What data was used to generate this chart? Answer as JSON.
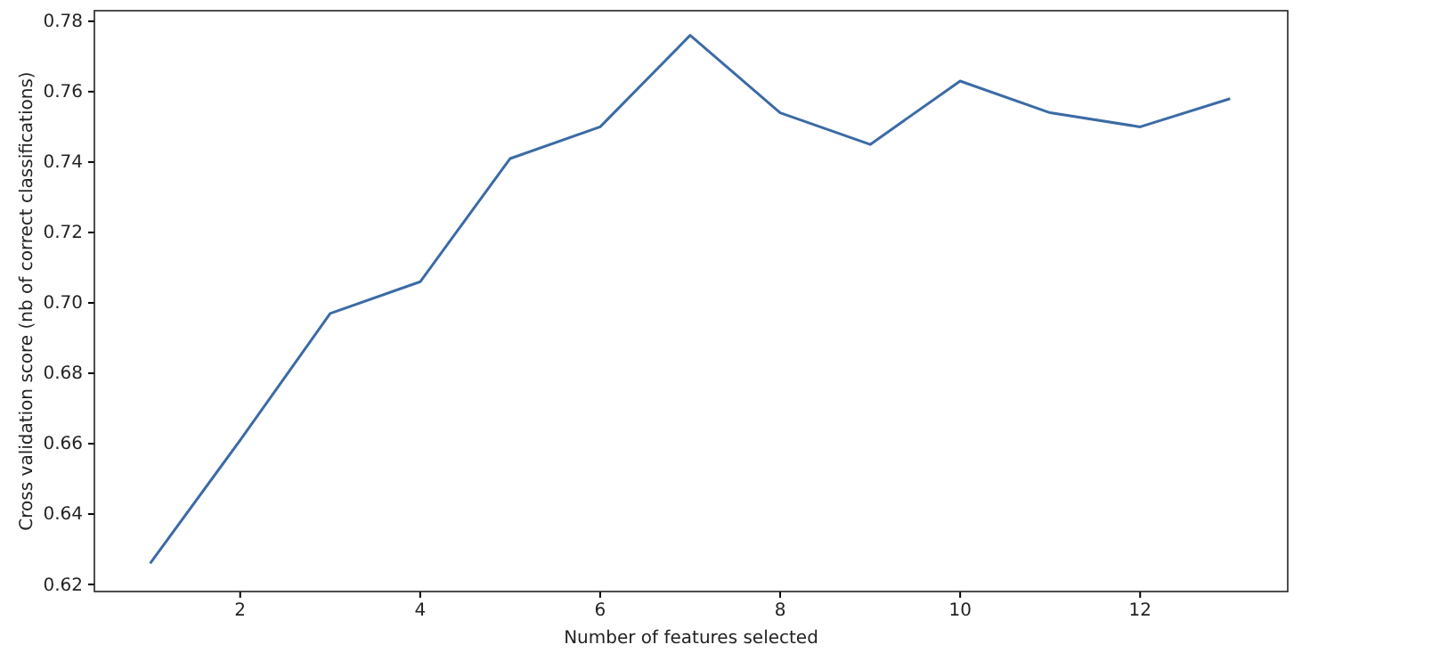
{
  "chart_data": {
    "type": "line",
    "xlabel": "Number of features selected",
    "ylabel": "Cross validation score (nb of correct classifications)",
    "x": [
      1,
      2,
      3,
      4,
      5,
      6,
      7,
      8,
      9,
      10,
      11,
      12,
      13
    ],
    "series": [
      {
        "color": "#3b6ba5",
        "values": [
          0.626,
          0.661,
          0.697,
          0.706,
          0.741,
          0.75,
          0.776,
          0.754,
          0.745,
          0.763,
          0.754,
          0.75,
          0.758
        ]
      }
    ],
    "xlim": [
      0.38,
      13.64
    ],
    "xticks": [
      2,
      4,
      6,
      8,
      10,
      12
    ],
    "ylim": [
      0.618,
      0.783
    ],
    "yticks": [
      {
        "value": 0.62,
        "label": "0.62"
      },
      {
        "value": 0.64,
        "label": "0.64"
      },
      {
        "value": 0.66,
        "label": "0.66"
      },
      {
        "value": 0.68,
        "label": "0.68"
      },
      {
        "value": 0.7,
        "label": "0.70"
      },
      {
        "value": 0.72,
        "label": "0.72"
      },
      {
        "value": 0.74,
        "label": "0.74"
      },
      {
        "value": 0.76,
        "label": "0.76"
      },
      {
        "value": 0.78,
        "label": "0.78"
      }
    ],
    "marker": "none",
    "line_style": "solid"
  }
}
